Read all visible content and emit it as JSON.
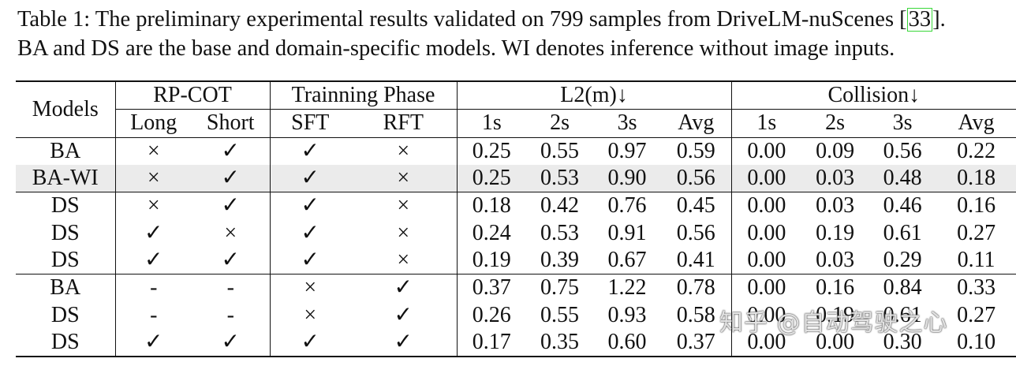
{
  "caption": {
    "line1_prefix": "Table 1: The preliminary experimental results validated on 799 samples from DriveLM-nuScenes [",
    "cite": "33",
    "line1_suffix": "].",
    "line2": "BA and DS are the base and domain-specific models. WI denotes inference without image inputs."
  },
  "table": {
    "header": {
      "models": "Models",
      "rp_cot": "RP-COT",
      "phase": "Trainning Phase",
      "l2": "L2(m)↓",
      "collision": "Collision↓",
      "long": "Long",
      "short": "Short",
      "sft": "SFT",
      "rft": "RFT",
      "l2_cols": [
        "1s",
        "2s",
        "3s",
        "Avg"
      ],
      "col_cols": [
        "1s",
        "2s",
        "3s",
        "Avg"
      ]
    },
    "rows": [
      {
        "model": "BA",
        "long": "×",
        "short": "✓",
        "sft": "✓",
        "rft": "×",
        "l2": [
          "0.25",
          "0.55",
          "0.97",
          "0.59"
        ],
        "col": [
          "0.00",
          "0.09",
          "0.56",
          "0.22"
        ]
      },
      {
        "model": "BA-WI",
        "long": "×",
        "short": "✓",
        "sft": "✓",
        "rft": "×",
        "l2": [
          "0.25",
          "0.53",
          "0.90",
          "0.56"
        ],
        "col": [
          "0.00",
          "0.03",
          "0.48",
          "0.18"
        ]
      },
      {
        "model": "DS",
        "long": "×",
        "short": "✓",
        "sft": "✓",
        "rft": "×",
        "l2": [
          "0.18",
          "0.42",
          "0.76",
          "0.45"
        ],
        "col": [
          "0.00",
          "0.03",
          "0.46",
          "0.16"
        ]
      },
      {
        "model": "DS",
        "long": "✓",
        "short": "×",
        "sft": "✓",
        "rft": "×",
        "l2": [
          "0.24",
          "0.53",
          "0.91",
          "0.56"
        ],
        "col": [
          "0.00",
          "0.19",
          "0.61",
          "0.27"
        ]
      },
      {
        "model": "DS",
        "long": "✓",
        "short": "✓",
        "sft": "✓",
        "rft": "×",
        "l2": [
          "0.19",
          "0.39",
          "0.67",
          "0.41"
        ],
        "col": [
          "0.00",
          "0.03",
          "0.29",
          "0.11"
        ]
      },
      {
        "model": "BA",
        "long": "-",
        "short": "-",
        "sft": "×",
        "rft": "✓",
        "l2": [
          "0.37",
          "0.75",
          "1.22",
          "0.78"
        ],
        "col": [
          "0.00",
          "0.16",
          "0.84",
          "0.33"
        ]
      },
      {
        "model": "DS",
        "long": "-",
        "short": "-",
        "sft": "×",
        "rft": "✓",
        "l2": [
          "0.26",
          "0.55",
          "0.93",
          "0.58"
        ],
        "col": [
          "0.00",
          "0.19",
          "0.61",
          "0.27"
        ]
      },
      {
        "model": "DS",
        "long": "✓",
        "short": "✓",
        "sft": "✓",
        "rft": "✓",
        "l2": [
          "0.17",
          "0.35",
          "0.60",
          "0.37"
        ],
        "col": [
          "0.00",
          "0.00",
          "0.30",
          "0.10"
        ]
      }
    ]
  },
  "watermark": "知乎 @自动驾驶之心"
}
